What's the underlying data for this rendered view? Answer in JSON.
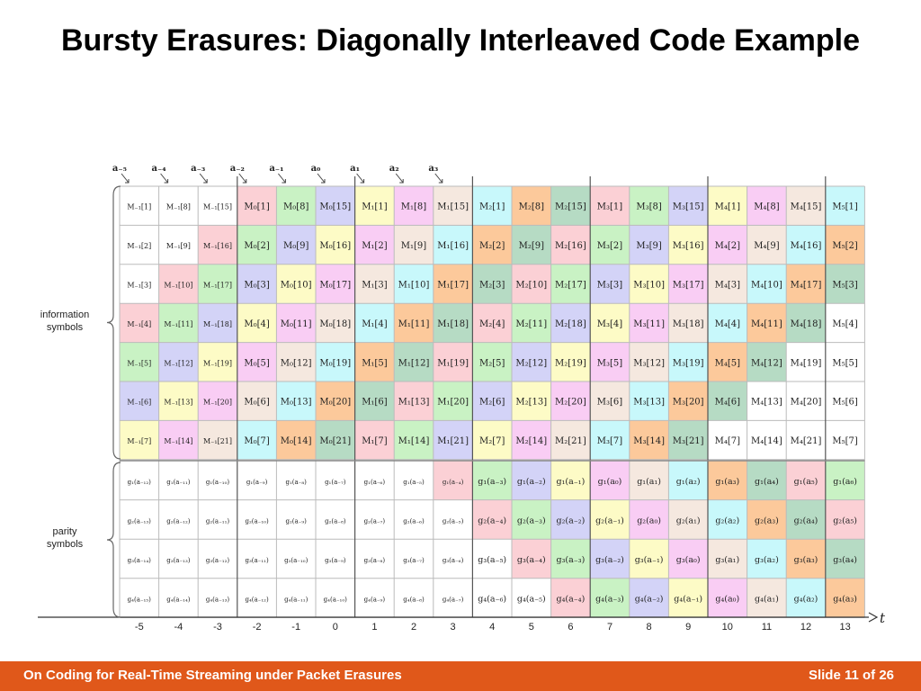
{
  "slide": {
    "title": "Bursty Erasures: Diagonally Interleaved Code Example",
    "footer_left": "On Coding for Real-Time Streaming under Packet Erasures",
    "footer_right": "Slide 11 of 26"
  },
  "figure": {
    "top_labels": [
      "a₋₅",
      "a₋₄",
      "a₋₃",
      "a₋₂",
      "a₋₁",
      "a₀",
      "a₁",
      "a₂",
      "a₃"
    ],
    "t_ticks": [
      "-5",
      "-4",
      "-3",
      "-2",
      "-1",
      "0",
      "1",
      "2",
      "3",
      "4",
      "5",
      "6",
      "7",
      "8",
      "9",
      "10",
      "11",
      "12",
      "13"
    ],
    "t_label": "t",
    "info_label": [
      "information",
      "symbols"
    ],
    "parity_label": [
      "parity",
      "symbols"
    ],
    "info_rows": [
      [
        "M₋₁[1]",
        "M₋₁[8]",
        "M₋₁[15]",
        "M₀[1]",
        "M₀[8]",
        "M₀[15]",
        "M₁[1]",
        "M₁[8]",
        "M₁[15]",
        "M₂[1]",
        "M₂[8]",
        "M₂[15]",
        "M₃[1]",
        "M₃[8]",
        "M₃[15]",
        "M₄[1]",
        "M₄[8]",
        "M₄[15]",
        "M₅[1]"
      ],
      [
        "M₋₁[2]",
        "M₋₁[9]",
        "M₋₁[16]",
        "M₀[2]",
        "M₀[9]",
        "M₀[16]",
        "M₁[2]",
        "M₁[9]",
        "M₁[16]",
        "M₂[2]",
        "M₂[9]",
        "M₂[16]",
        "M₃[2]",
        "M₃[9]",
        "M₃[16]",
        "M₄[2]",
        "M₄[9]",
        "M₄[16]",
        "M₅[2]"
      ],
      [
        "M₋₁[3]",
        "M₋₁[10]",
        "M₋₁[17]",
        "M₀[3]",
        "M₀[10]",
        "M₀[17]",
        "M₁[3]",
        "M₁[10]",
        "M₁[17]",
        "M₂[3]",
        "M₂[10]",
        "M₂[17]",
        "M₃[3]",
        "M₃[10]",
        "M₃[17]",
        "M₄[3]",
        "M₄[10]",
        "M₄[17]",
        "M₅[3]"
      ],
      [
        "M₋₁[4]",
        "M₋₁[11]",
        "M₋₁[18]",
        "M₀[4]",
        "M₀[11]",
        "M₀[18]",
        "M₁[4]",
        "M₁[11]",
        "M₁[18]",
        "M₂[4]",
        "M₂[11]",
        "M₂[18]",
        "M₃[4]",
        "M₃[11]",
        "M₃[18]",
        "M₄[4]",
        "M₄[11]",
        "M₄[18]",
        "M₅[4]"
      ],
      [
        "M₋₁[5]",
        "M₋₁[12]",
        "M₋₁[19]",
        "M₀[5]",
        "M₀[12]",
        "M₀[19]",
        "M₁[5]",
        "M₁[12]",
        "M₁[19]",
        "M₂[5]",
        "M₂[12]",
        "M₂[19]",
        "M₃[5]",
        "M₃[12]",
        "M₃[19]",
        "M₄[5]",
        "M₄[12]",
        "M₄[19]",
        "M₅[5]"
      ],
      [
        "M₋₁[6]",
        "M₋₁[13]",
        "M₋₁[20]",
        "M₀[6]",
        "M₀[13]",
        "M₀[20]",
        "M₁[6]",
        "M₁[13]",
        "M₁[20]",
        "M₂[6]",
        "M₂[13]",
        "M₂[20]",
        "M₃[6]",
        "M₃[13]",
        "M₃[20]",
        "M₄[6]",
        "M₄[13]",
        "M₄[20]",
        "M₅[6]"
      ],
      [
        "M₋₁[7]",
        "M₋₁[14]",
        "M₋₁[21]",
        "M₀[7]",
        "M₀[14]",
        "M₀[21]",
        "M₁[7]",
        "M₁[14]",
        "M₁[21]",
        "M₂[7]",
        "M₂[14]",
        "M₂[21]",
        "M₃[7]",
        "M₃[14]",
        "M₃[21]",
        "M₄[7]",
        "M₄[14]",
        "M₄[21]",
        "M₅[7]"
      ]
    ],
    "parity_rows": [
      [
        "g₁(a₋₁₂)",
        "g₁(a₋₁₁)",
        "g₁(a₋₁₀)",
        "g₁(a₋₉)",
        "g₁(a₋₈)",
        "g₁(a₋₇)",
        "g₁(a₋₆)",
        "g₁(a₋₅)",
        "g₁(a₋₄)",
        "g₁(a₋₃)",
        "g₁(a₋₂)",
        "g₁(a₋₁)",
        "g₁(a₀)",
        "g₁(a₁)",
        "g₁(a₂)",
        "g₁(a₃)",
        "g₁(a₄)",
        "g₁(a₅)",
        "g₁(a₆)"
      ],
      [
        "g₂(a₋₁₃)",
        "g₂(a₋₁₂)",
        "g₂(a₋₁₁)",
        "g₂(a₋₁₀)",
        "g₂(a₋₉)",
        "g₂(a₋₈)",
        "g₂(a₋₇)",
        "g₂(a₋₆)",
        "g₂(a₋₅)",
        "g₂(a₋₄)",
        "g₂(a₋₃)",
        "g₂(a₋₂)",
        "g₂(a₋₁)",
        "g₂(a₀)",
        "g₂(a₁)",
        "g₂(a₂)",
        "g₂(a₃)",
        "g₂(a₄)",
        "g₂(a₅)"
      ],
      [
        "g₃(a₋₁₄)",
        "g₃(a₋₁₃)",
        "g₃(a₋₁₂)",
        "g₃(a₋₁₁)",
        "g₃(a₋₁₀)",
        "g₃(a₋₉)",
        "g₃(a₋₈)",
        "g₃(a₋₇)",
        "g₃(a₋₆)",
        "g₃(a₋₅)",
        "g₃(a₋₄)",
        "g₃(a₋₃)",
        "g₃(a₋₂)",
        "g₃(a₋₁)",
        "g₃(a₀)",
        "g₃(a₁)",
        "g₃(a₂)",
        "g₃(a₃)",
        "g₃(a₄)"
      ],
      [
        "g₄(a₋₁₅)",
        "g₄(a₋₁₄)",
        "g₄(a₋₁₃)",
        "g₄(a₋₁₂)",
        "g₄(a₋₁₁)",
        "g₄(a₋₁₀)",
        "g₄(a₋₉)",
        "g₄(a₋₈)",
        "g₄(a₋₇)",
        "g₄(a₋₆)",
        "g₄(a₋₅)",
        "g₄(a₋₄)",
        "g₄(a₋₃)",
        "g₄(a₋₂)",
        "g₄(a₋₁)",
        "g₄(a₀)",
        "g₄(a₁)",
        "g₄(a₂)",
        "g₄(a₃)"
      ]
    ],
    "diagonal_colors": {
      "-1": "#fbd0d5",
      "0": "#c9f2c4",
      "1": "#d3d3f7",
      "2": "#fdfbc6",
      "3": "#f9cdf4",
      "4": "#f5e8df",
      "5": "#c8f8fb",
      "6": "#fcc99b",
      "7": "#b6dbc4",
      "8": "#fbd0d5",
      "9": "#c9f2c4",
      "10": "#d3d3f7",
      "11": "#fdfbc6",
      "12": "#f9cdf4",
      "13": "#f5e8df",
      "14": "#c8f8fb",
      "15": "#fcc99b",
      "16": "#b6dbc4"
    }
  }
}
